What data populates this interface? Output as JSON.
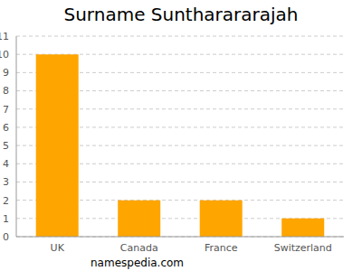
{
  "chart_data": {
    "type": "bar",
    "title": "Surname Suntharararajah",
    "categories": [
      "UK",
      "Canada",
      "France",
      "Switzerland"
    ],
    "values": [
      10,
      2,
      2,
      1
    ],
    "color": "#ffa500",
    "ylim": [
      0,
      11
    ],
    "yticks": [
      0,
      1,
      2,
      3,
      4,
      5,
      6,
      7,
      8,
      9,
      10,
      11
    ],
    "grid": true,
    "annotations": [
      "namespedia.com"
    ]
  }
}
